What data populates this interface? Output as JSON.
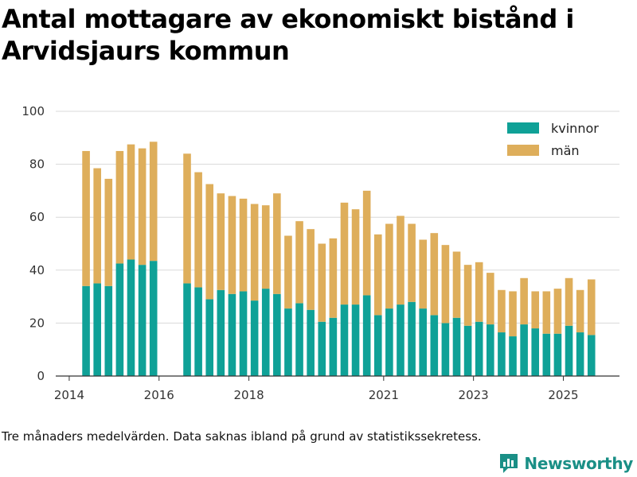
{
  "title": "Antal mottagare av ekonomiskt bistånd i Arvidsjaurs kommun",
  "caption": "Tre månaders medelvärden. Data saknas ibland på grund av statistikssekretess.",
  "brand": {
    "name": "Newsworthy",
    "icon": "newsworthy-logo-icon"
  },
  "colors": {
    "kvinnor": "#0fa197",
    "man": "#deae5b",
    "grid": "#d9d9d9",
    "axis": "#333333",
    "brand": "#1a8f86"
  },
  "chart_data": {
    "type": "bar",
    "stacked": true,
    "title": "Antal mottagare av ekonomiskt bistånd i Arvidsjaurs kommun",
    "xlabel": "",
    "ylabel": "",
    "ylim": [
      0,
      100
    ],
    "yticks": [
      0,
      20,
      40,
      60,
      80,
      100
    ],
    "xticks": [
      {
        "label": "2014",
        "t": 2014.0
      },
      {
        "label": "2016",
        "t": 2016.0
      },
      {
        "label": "2018",
        "t": 2018.0
      },
      {
        "label": "2021",
        "t": 2021.0
      },
      {
        "label": "2023",
        "t": 2023.0
      },
      {
        "label": "2025",
        "t": 2025.0
      }
    ],
    "xlim": [
      2013.7,
      2026.25
    ],
    "legend": "top-right",
    "grid": true,
    "t": [
      2014.375,
      2014.625,
      2014.875,
      2015.125,
      2015.375,
      2015.625,
      2015.875,
      2016.625,
      2016.875,
      2017.125,
      2017.375,
      2017.625,
      2017.875,
      2018.125,
      2018.375,
      2018.625,
      2018.875,
      2019.125,
      2019.375,
      2019.625,
      2019.875,
      2020.125,
      2020.375,
      2020.625,
      2020.875,
      2021.125,
      2021.375,
      2021.625,
      2021.875,
      2022.125,
      2022.375,
      2022.625,
      2022.875,
      2023.125,
      2023.375,
      2023.625,
      2023.875,
      2024.125,
      2024.375,
      2024.625,
      2024.875,
      2025.125,
      2025.375,
      2025.625
    ],
    "series": [
      {
        "name": "kvinnor",
        "values": [
          34,
          35,
          34,
          42.5,
          44,
          42,
          43.5,
          35,
          33.5,
          29,
          32.5,
          31,
          32,
          28.5,
          33,
          31,
          25.5,
          27.5,
          25,
          20.5,
          22,
          27,
          27,
          30.5,
          23,
          25.5,
          27,
          28,
          25.5,
          23,
          20,
          22,
          19,
          20.5,
          19.5,
          16.5,
          15,
          19.5,
          18,
          16,
          16,
          19,
          16.5,
          15.5
        ]
      },
      {
        "name": "män",
        "values": [
          51,
          43.5,
          40.5,
          42.5,
          43.5,
          44,
          45,
          49,
          43.5,
          43.5,
          36.5,
          37,
          35,
          36.5,
          31.5,
          38,
          27.5,
          31,
          30.5,
          29.5,
          30,
          38.5,
          36,
          39.5,
          30.5,
          32,
          33.5,
          29.5,
          26,
          31,
          29.5,
          25,
          23,
          22.5,
          19.5,
          16,
          17,
          17.5,
          14,
          16,
          17,
          18,
          16,
          21
        ]
      }
    ]
  }
}
